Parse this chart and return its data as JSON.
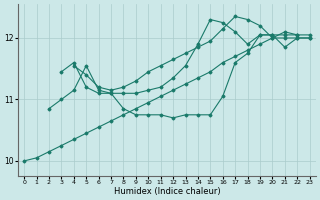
{
  "title": "",
  "xlabel": "Humidex (Indice chaleur)",
  "bg_color": "#cce8e8",
  "line_color": "#1a7a6a",
  "grid_color": "#aacccc",
  "ylim": [
    9.75,
    12.55
  ],
  "xlim": [
    -0.5,
    23.5
  ],
  "yticks": [
    10,
    11,
    12
  ],
  "xtick_labels": [
    "0",
    "1",
    "2",
    "3",
    "4",
    "5",
    "6",
    "7",
    "8",
    "9",
    "10",
    "11",
    "12",
    "13",
    "14",
    "15",
    "16",
    "17",
    "18",
    "19",
    "20",
    "21",
    "22",
    "23"
  ],
  "series": [
    {
      "start": 0,
      "data": [
        10.0,
        10.05,
        10.15,
        10.25,
        10.35,
        10.45,
        10.55,
        10.65,
        10.75,
        10.85,
        10.95,
        11.05,
        11.15,
        11.25,
        11.35,
        11.45,
        11.6,
        11.7,
        11.8,
        11.9,
        12.0,
        12.0,
        12.0,
        12.0
      ]
    },
    {
      "start": 2,
      "data": [
        10.85,
        11.0,
        11.15,
        11.55,
        11.15,
        11.1,
        10.85,
        10.75,
        10.75,
        10.75,
        10.7,
        10.75,
        10.75,
        10.75,
        11.05,
        11.6,
        11.75,
        12.05,
        12.05,
        11.85,
        12.0,
        12.0
      ]
    },
    {
      "start": 3,
      "data": [
        11.45,
        11.6,
        11.2,
        11.1,
        11.1,
        11.1,
        11.1,
        11.15,
        11.2,
        11.35,
        11.55,
        11.9,
        12.3,
        12.25,
        12.1,
        11.9,
        12.05,
        12.05,
        12.05,
        12.05
      ]
    },
    {
      "start": 4,
      "data": [
        11.55,
        11.4,
        11.2,
        11.15,
        11.2,
        11.3,
        11.45,
        11.55,
        11.65,
        11.75,
        11.85,
        11.95,
        12.15,
        12.35,
        12.3,
        12.2,
        12.0,
        12.1,
        12.05,
        12.05
      ]
    }
  ]
}
